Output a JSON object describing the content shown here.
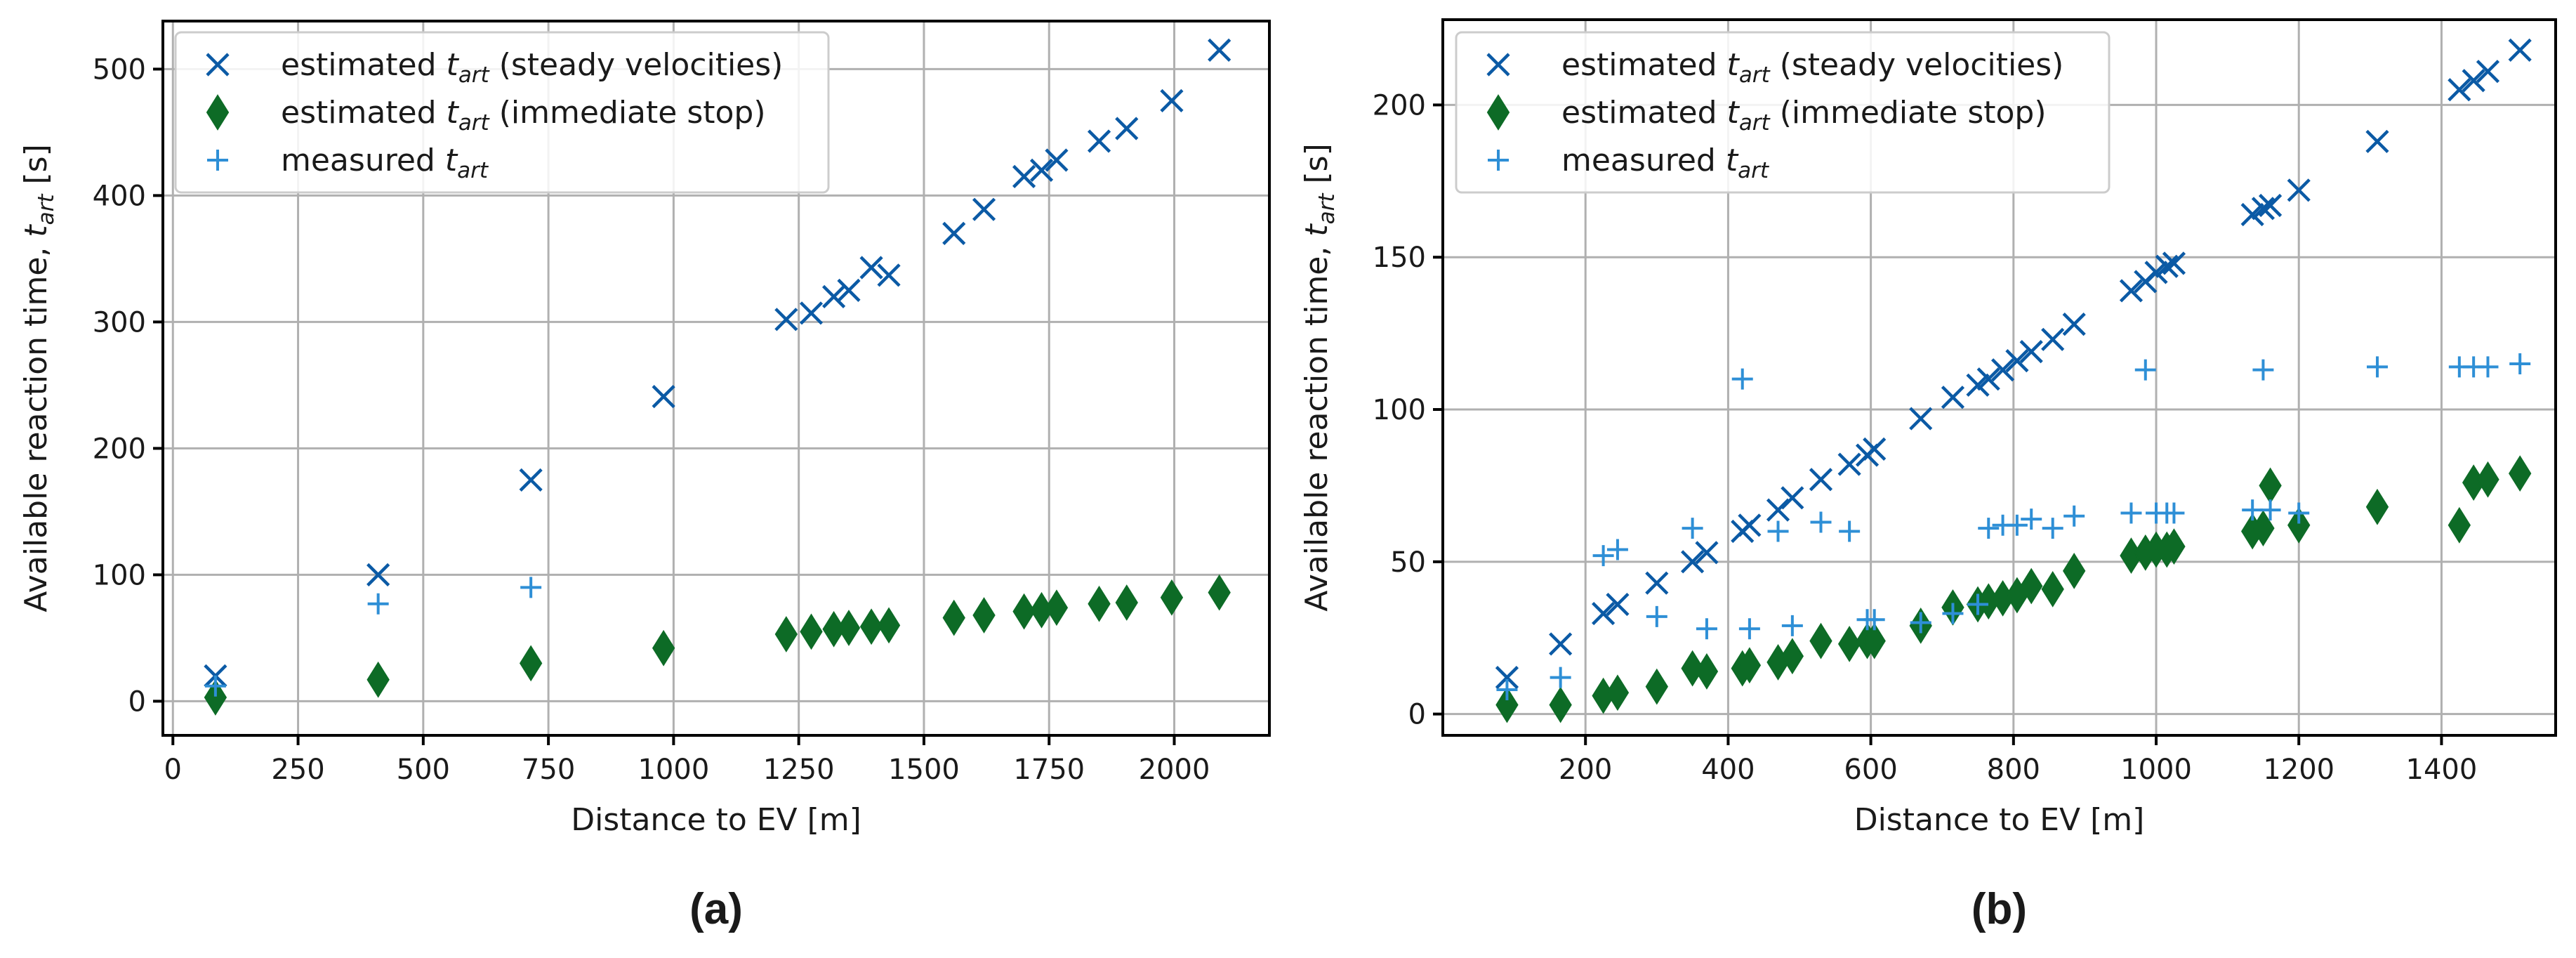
{
  "colors": {
    "steady": "#0b5aa5",
    "stop": "#0d6b26",
    "measured": "#2e8fd6",
    "grid": "#b0b0b0"
  },
  "legend": {
    "steady_prefix": "estimated ",
    "steady_var": "t",
    "steady_sub": "art",
    "steady_suffix": " (steady velocities)",
    "stop_prefix": "estimated ",
    "stop_var": "t",
    "stop_sub": "art",
    "stop_suffix": " (immediate stop)",
    "measured_prefix": "measured ",
    "measured_var": "t",
    "measured_sub": "art"
  },
  "ylabel": {
    "prefix": "Available reaction time, ",
    "var": "t",
    "sub": "art",
    "suffix": " [s]"
  },
  "chart_data": [
    {
      "type": "scatter",
      "panel_label": "(a)",
      "xlabel": "Distance to EV [m]",
      "ylabel": "Available reaction time, t_art [s]",
      "xlim": [
        -20,
        2190
      ],
      "ylim": [
        -27,
        538
      ],
      "xticks": [
        0,
        250,
        500,
        750,
        1000,
        1250,
        1500,
        1750,
        2000
      ],
      "yticks": [
        0,
        100,
        200,
        300,
        400,
        500
      ],
      "grid": true,
      "legend_position": "top-left",
      "series": [
        {
          "name": "estimated t_art (steady velocities)",
          "marker": "x",
          "points": [
            [
              85,
              20
            ],
            [
              410,
              100
            ],
            [
              715,
              175
            ],
            [
              980,
              241
            ],
            [
              1225,
              302
            ],
            [
              1275,
              307
            ],
            [
              1320,
              320
            ],
            [
              1350,
              325
            ],
            [
              1395,
              343
            ],
            [
              1430,
              337
            ],
            [
              1560,
              370
            ],
            [
              1620,
              389
            ],
            [
              1700,
              415
            ],
            [
              1735,
              420
            ],
            [
              1765,
              428
            ],
            [
              1850,
              443
            ],
            [
              1905,
              453
            ],
            [
              1995,
              475
            ],
            [
              2090,
              515
            ]
          ]
        },
        {
          "name": "estimated t_art (immediate stop)",
          "marker": "diamond",
          "points": [
            [
              85,
              3
            ],
            [
              410,
              17
            ],
            [
              715,
              30
            ],
            [
              980,
              42
            ],
            [
              1225,
              53
            ],
            [
              1275,
              55
            ],
            [
              1320,
              57
            ],
            [
              1350,
              58
            ],
            [
              1395,
              59
            ],
            [
              1430,
              60
            ],
            [
              1560,
              66
            ],
            [
              1620,
              68
            ],
            [
              1700,
              71
            ],
            [
              1735,
              72
            ],
            [
              1765,
              74
            ],
            [
              1850,
              77
            ],
            [
              1905,
              78
            ],
            [
              1995,
              82
            ],
            [
              2090,
              86
            ]
          ]
        },
        {
          "name": "measured t_art",
          "marker": "plus",
          "points": [
            [
              85,
              12
            ],
            [
              410,
              77
            ],
            [
              715,
              90
            ]
          ]
        }
      ]
    },
    {
      "type": "scatter",
      "panel_label": "(b)",
      "xlabel": "Distance to EV [m]",
      "ylabel": "Available reaction time, t_art [s]",
      "xlim": [
        0,
        1560
      ],
      "ylim": [
        -7,
        228
      ],
      "xticks": [
        200,
        400,
        600,
        800,
        1000,
        1200,
        1400
      ],
      "yticks": [
        0,
        50,
        100,
        150,
        200
      ],
      "grid": true,
      "legend_position": "top-left",
      "series": [
        {
          "name": "estimated t_art (steady velocities)",
          "marker": "x",
          "points": [
            [
              90,
              12
            ],
            [
              165,
              23
            ],
            [
              225,
              33
            ],
            [
              245,
              36
            ],
            [
              300,
              43
            ],
            [
              350,
              50
            ],
            [
              370,
              53
            ],
            [
              420,
              60
            ],
            [
              430,
              62
            ],
            [
              470,
              67
            ],
            [
              490,
              71
            ],
            [
              530,
              77
            ],
            [
              570,
              82
            ],
            [
              595,
              85
            ],
            [
              605,
              87
            ],
            [
              670,
              97
            ],
            [
              715,
              104
            ],
            [
              750,
              108
            ],
            [
              765,
              110
            ],
            [
              785,
              113
            ],
            [
              805,
              116
            ],
            [
              825,
              119
            ],
            [
              855,
              123
            ],
            [
              885,
              128
            ],
            [
              965,
              139
            ],
            [
              985,
              142
            ],
            [
              1000,
              145
            ],
            [
              1015,
              147
            ],
            [
              1025,
              148
            ],
            [
              1135,
              164
            ],
            [
              1150,
              166
            ],
            [
              1160,
              167
            ],
            [
              1200,
              172
            ],
            [
              1310,
              188
            ],
            [
              1425,
              205
            ],
            [
              1445,
              208
            ],
            [
              1465,
              211
            ],
            [
              1510,
              218
            ]
          ]
        },
        {
          "name": "estimated t_art (immediate stop)",
          "marker": "diamond",
          "points": [
            [
              90,
              3
            ],
            [
              165,
              3
            ],
            [
              225,
              6
            ],
            [
              245,
              7
            ],
            [
              300,
              9
            ],
            [
              350,
              15
            ],
            [
              370,
              14
            ],
            [
              420,
              15
            ],
            [
              430,
              16
            ],
            [
              470,
              17
            ],
            [
              490,
              19
            ],
            [
              530,
              24
            ],
            [
              570,
              23
            ],
            [
              595,
              24
            ],
            [
              605,
              24
            ],
            [
              670,
              29
            ],
            [
              715,
              35
            ],
            [
              750,
              36
            ],
            [
              765,
              37
            ],
            [
              785,
              38
            ],
            [
              805,
              39
            ],
            [
              825,
              42
            ],
            [
              855,
              41
            ],
            [
              885,
              47
            ],
            [
              965,
              52
            ],
            [
              985,
              53
            ],
            [
              1000,
              54
            ],
            [
              1015,
              54
            ],
            [
              1025,
              55
            ],
            [
              1135,
              60
            ],
            [
              1150,
              61
            ],
            [
              1160,
              75
            ],
            [
              1200,
              62
            ],
            [
              1310,
              68
            ],
            [
              1425,
              62
            ],
            [
              1445,
              76
            ],
            [
              1465,
              77
            ],
            [
              1510,
              79
            ]
          ]
        },
        {
          "name": "measured t_art",
          "marker": "plus",
          "points": [
            [
              90,
              8
            ],
            [
              165,
              12
            ],
            [
              225,
              52
            ],
            [
              245,
              54
            ],
            [
              300,
              32
            ],
            [
              350,
              61
            ],
            [
              370,
              28
            ],
            [
              420,
              110
            ],
            [
              430,
              28
            ],
            [
              470,
              60
            ],
            [
              490,
              29
            ],
            [
              530,
              63
            ],
            [
              570,
              60
            ],
            [
              595,
              31
            ],
            [
              605,
              31
            ],
            [
              670,
              30
            ],
            [
              715,
              33
            ],
            [
              750,
              36
            ],
            [
              765,
              61
            ],
            [
              785,
              62
            ],
            [
              805,
              62
            ],
            [
              825,
              64
            ],
            [
              855,
              61
            ],
            [
              885,
              65
            ],
            [
              965,
              66
            ],
            [
              985,
              113
            ],
            [
              1000,
              66
            ],
            [
              1015,
              66
            ],
            [
              1025,
              66
            ],
            [
              1135,
              67
            ],
            [
              1150,
              113
            ],
            [
              1160,
              67
            ],
            [
              1200,
              66
            ],
            [
              1310,
              114
            ],
            [
              1425,
              114
            ],
            [
              1445,
              114
            ],
            [
              1465,
              114
            ],
            [
              1510,
              115
            ]
          ]
        }
      ]
    }
  ]
}
